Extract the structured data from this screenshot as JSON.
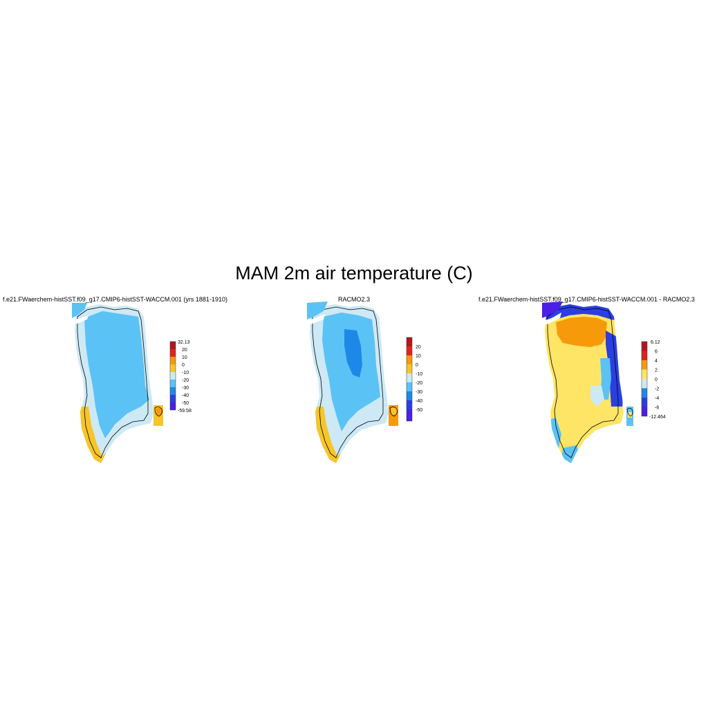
{
  "title": "MAM 2m air temperature (C)",
  "colors": {
    "cold_extreme": "#4b1fe6",
    "deep_blue": "#2b3fe0",
    "mid_blue": "#1e88e8",
    "sky_blue": "#5bc2f5",
    "pale_blue": "#cde9f6",
    "yellow": "#ffe566",
    "gold": "#f7c529",
    "orange": "#f79a0a",
    "red": "#e3221c",
    "dark_red": "#b8141c"
  },
  "panels": [
    {
      "title": "f.e21.FWaerchem-histSST.f09_g17.CMIP6-histSST-WACCM.001 (yrs 1881-1910)",
      "colorbar_labels": [
        "32.13",
        "20",
        "10",
        "0",
        "-10",
        "-20",
        "-30",
        "-40",
        "-50",
        "-59.58"
      ]
    },
    {
      "title": "RACMO2.3",
      "colorbar_labels": [
        "20",
        "10",
        "0",
        "-10",
        "-20",
        "-30",
        "-40",
        "-50"
      ]
    },
    {
      "title": "f.e21.FWaerchem-histSST.f09_g17.CMIP6-histSST-WACCM.001 - RACMO2.3",
      "colorbar_labels": [
        "6.12",
        "6",
        "4",
        "2",
        "0",
        "-2",
        "-4",
        "-6",
        "-12.464"
      ]
    }
  ]
}
